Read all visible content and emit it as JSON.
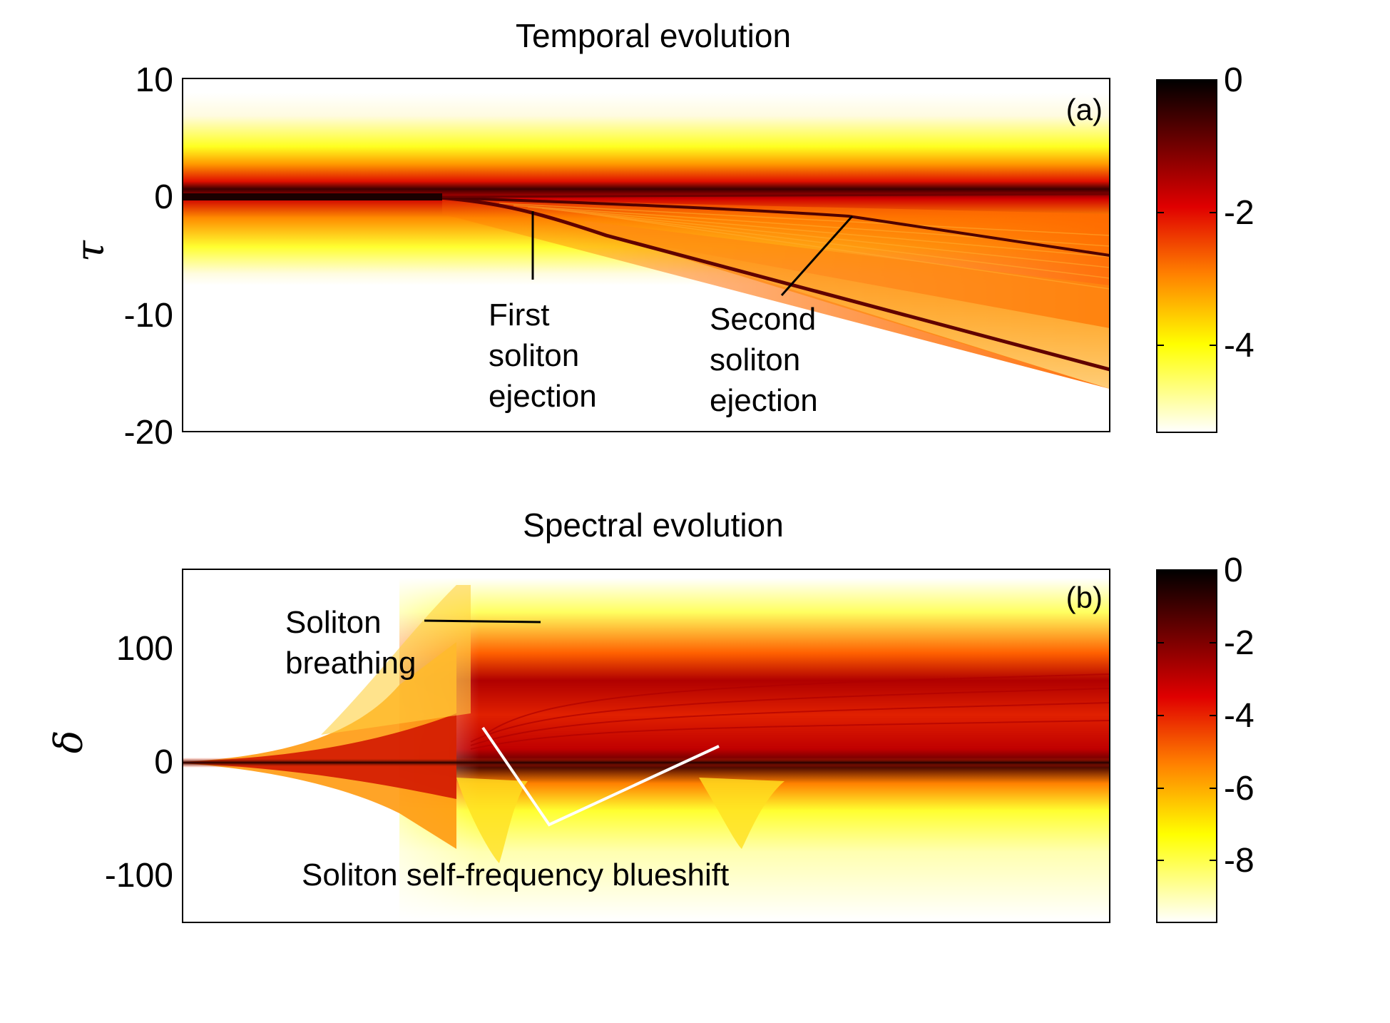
{
  "chart_data": [
    {
      "type": "heatmap",
      "panel_label": "(a)",
      "title": "Temporal evolution",
      "xlabel": "",
      "ylabel": "τ",
      "ylim": [
        -20,
        10
      ],
      "yticks": [
        "10",
        "0",
        "-10",
        "-20"
      ],
      "colorbar": {
        "range": [
          -5.3,
          0
        ],
        "ticks": [
          "0",
          "-2",
          "-4"
        ],
        "colormap": "hot (inverted)"
      },
      "annotations": [
        {
          "lines": [
            "First",
            "soliton",
            "ejection"
          ]
        },
        {
          "lines": [
            "Second",
            "soliton",
            "ejection"
          ]
        }
      ]
    },
    {
      "type": "heatmap",
      "panel_label": "(b)",
      "title": "Spectral evolution",
      "xlabel": "",
      "ylabel": "δ",
      "ylim": [
        -140,
        170
      ],
      "yticks": [
        "100",
        "0",
        "-100"
      ],
      "colorbar": {
        "range": [
          -9.7,
          0
        ],
        "ticks": [
          "0",
          "-2",
          "-4",
          "-6",
          "-8"
        ],
        "colormap": "hot (inverted)"
      },
      "annotations": [
        {
          "lines": [
            "Soliton",
            "breathing"
          ]
        },
        {
          "lines": [
            "Soliton self-frequency blueshift"
          ]
        }
      ]
    }
  ],
  "colors": {
    "black": "#000000",
    "dark_red": "#5a0000",
    "red": "#d80000",
    "orange": "#ff7a00",
    "yellow": "#ffff00",
    "white": "#ffffff"
  }
}
